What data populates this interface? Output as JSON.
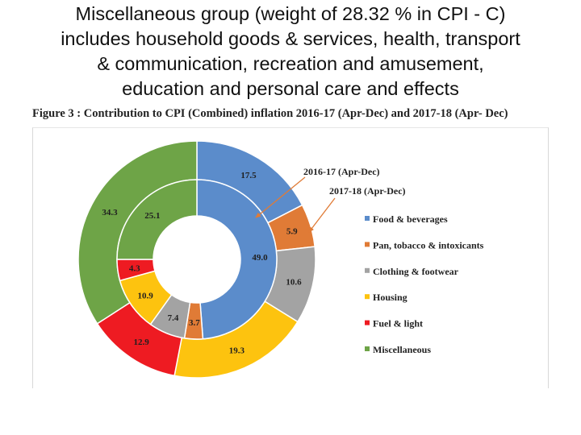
{
  "slide": {
    "title_lines": [
      "Miscellaneous group (weight of 28.32 % in CPI - C)",
      "includes household goods & services, health, transport",
      "& communication, recreation and amusement,",
      "education and personal care and effects"
    ]
  },
  "chart_data": {
    "type": "pie",
    "subtype": "donut-nested",
    "title": "Figure 3 : Contribution to CPI (Combined) inflation 2016-17 (Apr-Dec) and 2017-18 (Apr- Dec)",
    "categories": [
      "Food & beverages",
      "Pan, tobacco & intoxicants",
      "Clothing & footwear",
      "Housing",
      "Fuel & light",
      "Miscellaneous"
    ],
    "colors": [
      "#5b8ccb",
      "#e07b36",
      "#a3a3a3",
      "#fdc30f",
      "#ee1b22",
      "#6ea447"
    ],
    "series": [
      {
        "name": "2016-17 (Apr-Dec)",
        "ring": "inner",
        "values": [
          49.0,
          3.7,
          7.4,
          10.9,
          4.3,
          25.1
        ]
      },
      {
        "name": "2017-18 (Apr-Dec)",
        "ring": "outer",
        "values": [
          17.5,
          5.9,
          10.6,
          19.3,
          12.9,
          34.3
        ]
      }
    ],
    "legend_position": "right",
    "annotation_arrows": [
      "2016-17 (Apr-Dec)",
      "2017-18 (Apr-Dec)"
    ]
  }
}
